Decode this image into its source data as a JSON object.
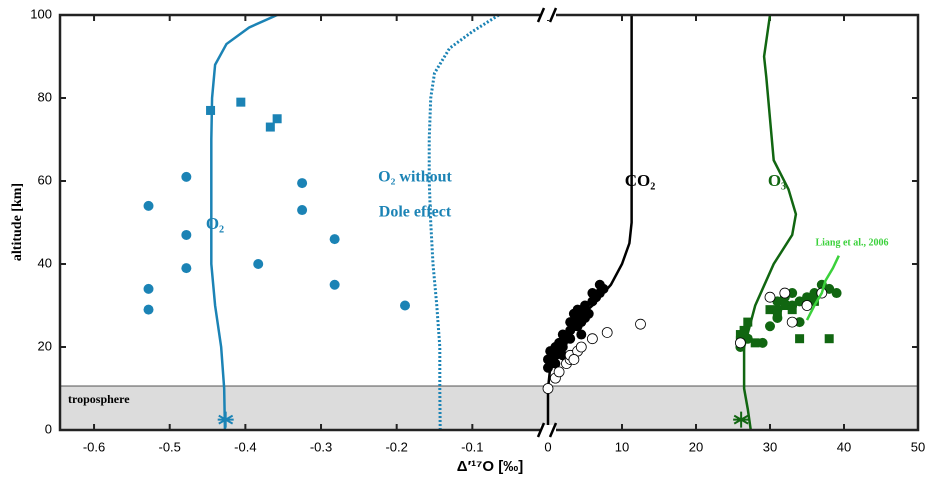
{
  "chart_data": {
    "type": "scatter",
    "x_label": "Δ′¹⁷O [‰]",
    "y_label": "altitude [km]",
    "xlim": [
      -0.645,
      0
    ],
    "xticks": [
      -0.6,
      -0.5,
      -0.4,
      -0.3,
      -0.2,
      -0.1,
      0
    ],
    "x2lim": [
      0,
      50
    ],
    "x2ticks": [
      10,
      20,
      30,
      40,
      50
    ],
    "ylim": [
      0,
      100
    ],
    "yticks": [
      0,
      20,
      40,
      60,
      80,
      100
    ],
    "shaded_band": {
      "label": "troposphere",
      "ylim": [
        0,
        10.6
      ],
      "color": "#dcdcdc"
    },
    "annotations": [
      "O₂",
      "O₂ without",
      "Dole effect",
      "CO₂",
      "O₃",
      "Liang et al., 2006"
    ],
    "series": [
      {
        "color": "#1b83b5",
        "line_style": "solid",
        "x": [
          -0.427,
          -0.428,
          -0.432,
          -0.44,
          -0.445,
          -0.445,
          -0.445,
          -0.445,
          -0.444,
          -0.44,
          -0.425,
          -0.395,
          -0.358
        ],
        "y": [
          0,
          10,
          20,
          30,
          40,
          50,
          60,
          70,
          80,
          88,
          93,
          97,
          100
        ]
      },
      {
        "color": "#1b83b5",
        "line_style": "dotted",
        "x": [
          -0.1425,
          -0.143,
          -0.143,
          -0.147,
          -0.152,
          -0.155,
          -0.157,
          -0.157,
          -0.155,
          -0.15,
          -0.13,
          -0.1,
          -0.065
        ],
        "y": [
          0,
          10,
          20,
          30,
          40,
          50,
          60,
          70,
          80,
          86,
          92,
          96,
          100
        ]
      },
      {
        "color": "#1b83b5",
        "marker": "circle",
        "x": [
          -0.528,
          -0.478,
          -0.478,
          -0.478,
          -0.528,
          -0.528,
          -0.383,
          -0.325,
          -0.325,
          -0.282,
          -0.282,
          -0.189
        ],
        "y": [
          54,
          61,
          47,
          39,
          34,
          29,
          40,
          59.5,
          53,
          46,
          35,
          30
        ]
      },
      {
        "color": "#1b83b5",
        "marker": "square",
        "x": [
          -0.446,
          -0.406,
          -0.367,
          -0.358
        ],
        "y": [
          77,
          79,
          73,
          75
        ]
      },
      {
        "color": "#1b83b5",
        "marker": "star",
        "x": [
          -0.426
        ],
        "y": [
          2.5
        ]
      },
      {
        "color": "#000000",
        "line_style": "solid",
        "axis": "x2",
        "x": [
          0,
          0,
          0.3,
          1,
          3,
          6,
          8.5,
          10,
          11,
          11.3,
          11.3,
          11.3
        ],
        "y": [
          0,
          10,
          15,
          20,
          25,
          30,
          35,
          40,
          45,
          50,
          60,
          100
        ]
      },
      {
        "color": "#000000",
        "marker": "circle",
        "axis": "x2",
        "x": [
          0,
          0,
          0.5,
          0.3,
          1,
          1,
          1.5,
          1,
          2,
          2,
          2.5,
          2,
          3,
          3,
          3.5,
          3,
          4,
          4,
          4.5,
          5,
          4,
          5,
          5.5,
          6,
          6.5,
          7,
          7.5,
          7,
          6,
          5,
          2,
          1.5,
          3.5,
          4.5
        ],
        "y": [
          15,
          17,
          18,
          19,
          16,
          18,
          19,
          20,
          20,
          21,
          22,
          23,
          22,
          24,
          25,
          26,
          25,
          27,
          26,
          28,
          29,
          30,
          28,
          31,
          32,
          33,
          34,
          35,
          33,
          27,
          18,
          21,
          28,
          23
        ]
      },
      {
        "color": "#000000",
        "marker": "open-circle",
        "axis": "x2",
        "x": [
          0,
          1,
          1.5,
          2.5,
          3,
          3,
          4,
          4.5,
          6,
          8,
          12.5,
          3.5
        ],
        "y": [
          10,
          12.5,
          14,
          16,
          17,
          18,
          19,
          20,
          22,
          23.5,
          25.5,
          17
        ]
      },
      {
        "color": "#116611",
        "line_style": "solid",
        "axis": "x2",
        "x": [
          27.4,
          27,
          26.5,
          26.5,
          28,
          30.5,
          33,
          33.5,
          32.5,
          30.5,
          30,
          29.5,
          29.2,
          30
        ],
        "y": [
          0,
          5,
          10,
          20,
          30,
          40,
          47,
          52,
          58,
          65,
          75,
          85,
          90,
          100
        ]
      },
      {
        "color": "#116611",
        "marker": "circle",
        "axis": "x2",
        "x": [
          26,
          27,
          29,
          30,
          31,
          31,
          32,
          33,
          34,
          35,
          36,
          38,
          39,
          37,
          34,
          35,
          31,
          33
        ],
        "y": [
          20,
          22,
          21,
          25,
          27,
          29,
          32,
          33,
          31,
          32,
          33,
          34,
          33,
          35,
          26,
          30,
          31,
          30
        ]
      },
      {
        "color": "#116611",
        "marker": "square",
        "axis": "x2",
        "x": [
          26,
          26.5,
          27,
          26,
          28,
          30,
          31,
          32,
          33,
          34,
          36,
          38,
          35
        ],
        "y": [
          23,
          24,
          26,
          21.5,
          21,
          29,
          28,
          30,
          29,
          22,
          31,
          22,
          31.5
        ]
      },
      {
        "color": "#116611",
        "marker": "open-circle",
        "axis": "x2",
        "x": [
          26,
          30,
          32,
          33,
          35,
          37
        ],
        "y": [
          21,
          32,
          33,
          26,
          30,
          33
        ]
      },
      {
        "color": "#116611",
        "marker": "star",
        "axis": "x2",
        "x": [
          26.1
        ],
        "y": [
          2.5
        ]
      },
      {
        "color": "#3bd13b",
        "line_style": "solid",
        "axis": "x2",
        "x": [
          35,
          36,
          37,
          37.5,
          38.5,
          39.3
        ],
        "y": [
          26.5,
          30,
          33,
          36,
          39,
          42
        ]
      }
    ]
  }
}
